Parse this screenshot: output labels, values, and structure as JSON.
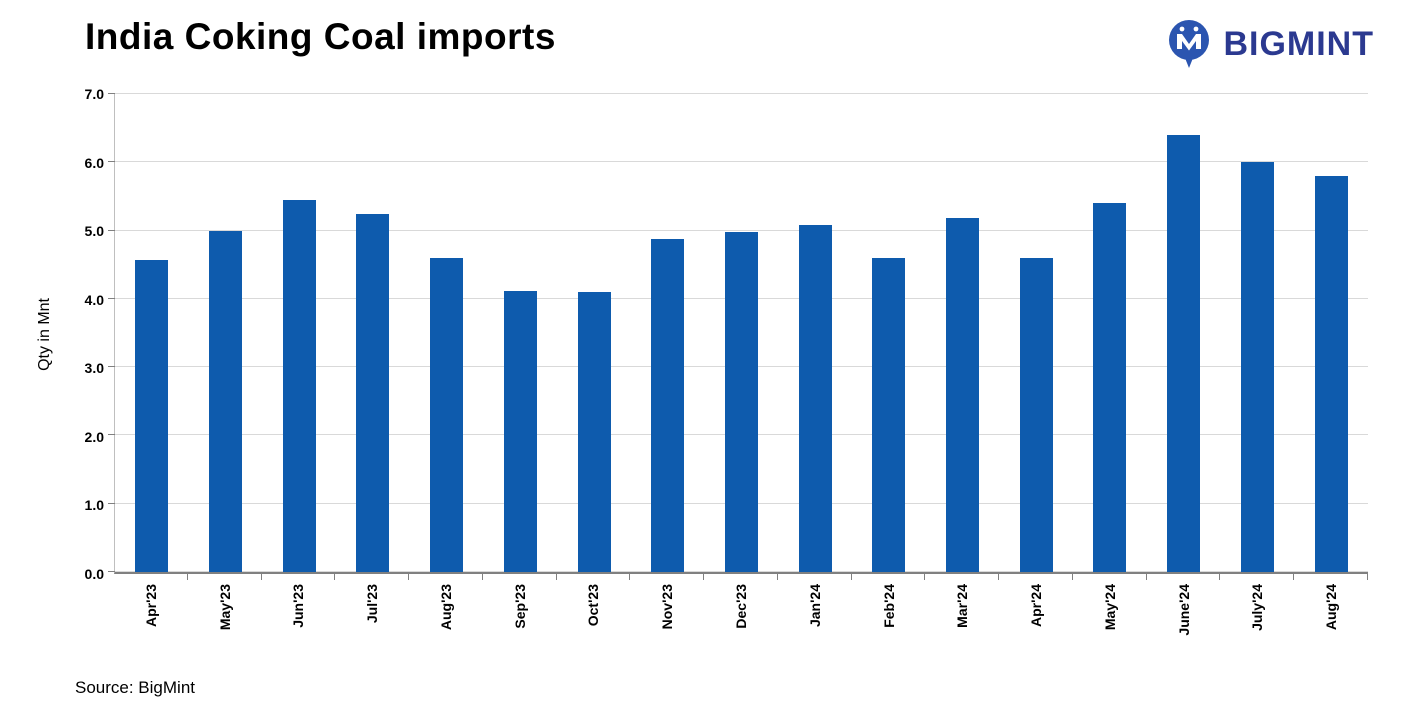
{
  "header": {
    "title": "India Coking Coal imports",
    "brand": {
      "name": "BIGMINT"
    }
  },
  "chart_data": {
    "type": "bar",
    "title": "India Coking Coal imports",
    "xlabel": "",
    "ylabel": "Qty  in Mnt",
    "categories": [
      "Apr'23",
      "May'23",
      "Jun'23",
      "Jul'23",
      "Aug'23",
      "Sep'23",
      "Oct'23",
      "Nov'23",
      "Dec'23",
      "Jan'24",
      "Feb'24",
      "Mar'24",
      "Apr'24",
      "May'24",
      "June'24",
      "July'24",
      "Aug'24"
    ],
    "values": [
      4.57,
      5.0,
      5.45,
      5.25,
      4.6,
      4.12,
      4.1,
      4.88,
      4.98,
      5.08,
      4.6,
      5.18,
      4.6,
      5.4,
      6.4,
      6.0,
      5.8
    ],
    "ylim": [
      0,
      7
    ],
    "ytick_step": 1.0,
    "ytick_format_decimals": 1,
    "grid": true,
    "legend_position": "none",
    "bar_color": "#0e5bad"
  },
  "footer": {
    "source": "Source: BigMint"
  },
  "colors": {
    "bar": "#0e5bad",
    "brand_text": "#2b3990",
    "brand_icon": "#2b55b0",
    "gridline": "#d9d9d9",
    "axis": "#808080"
  }
}
